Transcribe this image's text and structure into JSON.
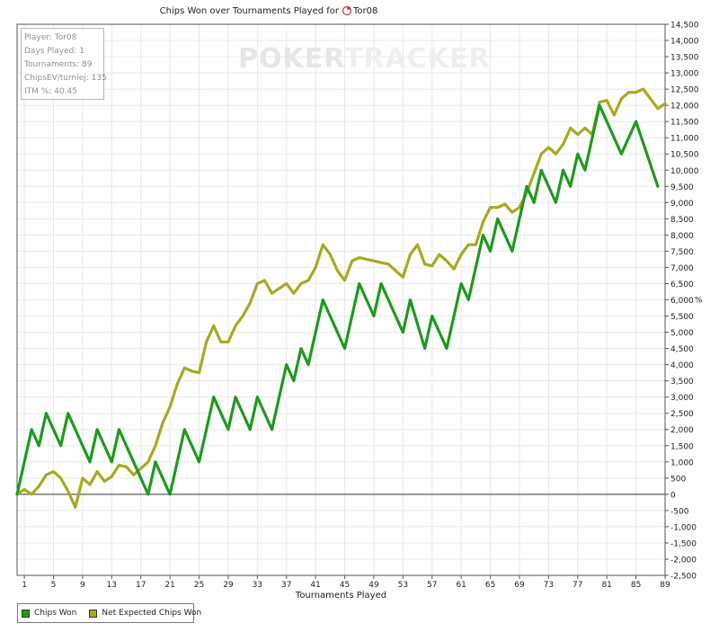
{
  "watermark": {
    "poker": "POKER",
    "tracker": "TRACKER"
  },
  "stats": {
    "player": "Player: Tor08",
    "days_played": "Days Played: 1",
    "tournaments": "Tournaments: 89",
    "chipsev": "ChipsEV/turniej: 135",
    "itm": "ITM %: 40.45"
  },
  "chart_data": {
    "type": "line",
    "title": "Chips Won over Tournaments Played for",
    "title_player": "Tor08",
    "xlabel": "Tournaments Played",
    "ylabel": "%",
    "xlim": [
      0,
      89
    ],
    "ylim": [
      -2500,
      14500
    ],
    "y_ticks": [
      14500,
      14000,
      13500,
      13000,
      12500,
      12000,
      11500,
      11000,
      10500,
      10000,
      9500,
      9000,
      8500,
      8000,
      7500,
      7000,
      6500,
      6000,
      5500,
      5000,
      4500,
      4000,
      3500,
      3000,
      2500,
      2000,
      1500,
      1000,
      500,
      0,
      -500,
      -1000,
      -1500,
      -2000,
      -2500
    ],
    "y_tick_labels": [
      "14,500",
      "14,000",
      "13,500",
      "13,000",
      "12,500",
      "12,000",
      "11,500",
      "11,000",
      "10,500",
      "10,000",
      "9,500",
      "9,000",
      "8,500",
      "8,000",
      "7,500",
      "7,000",
      "6,500",
      "6,000",
      "5,500",
      "5,000",
      "4,500",
      "4,000",
      "3,500",
      "3,000",
      "2,500",
      "2,000",
      "1,500",
      "1,000",
      "500",
      "0",
      "-500",
      "-1,000",
      "-1,500",
      "-2,000",
      "-2,500"
    ],
    "x_ticks": [
      1,
      5,
      9,
      13,
      17,
      21,
      25,
      29,
      33,
      37,
      41,
      45,
      49,
      53,
      57,
      61,
      65,
      69,
      73,
      77,
      81,
      85,
      89
    ],
    "x_tick_labels": [
      "1",
      "5",
      "9",
      "13",
      "17",
      "21",
      "25",
      "29",
      "33",
      "37",
      "41",
      "45",
      "49",
      "53",
      "57",
      "61",
      "65",
      "69",
      "73",
      "77",
      "81",
      "85",
      "89"
    ],
    "grid": true,
    "legend_position": "bottom-left",
    "series": [
      {
        "name": "Chips Won",
        "color": "#1e9a1e",
        "points": [
          [
            0,
            0
          ],
          [
            2,
            2000
          ],
          [
            3,
            1500
          ],
          [
            4,
            2500
          ],
          [
            6,
            1500
          ],
          [
            7,
            2500
          ],
          [
            10,
            1000
          ],
          [
            11,
            2000
          ],
          [
            13,
            1000
          ],
          [
            14,
            2000
          ],
          [
            17,
            500
          ],
          [
            18,
            0
          ],
          [
            19,
            1000
          ],
          [
            21,
            0
          ],
          [
            23,
            2000
          ],
          [
            25,
            1000
          ],
          [
            27,
            3000
          ],
          [
            29,
            2000
          ],
          [
            30,
            3000
          ],
          [
            32,
            2000
          ],
          [
            33,
            3000
          ],
          [
            35,
            2000
          ],
          [
            37,
            4000
          ],
          [
            38,
            3500
          ],
          [
            39,
            4500
          ],
          [
            40,
            4000
          ],
          [
            42,
            6000
          ],
          [
            45,
            4500
          ],
          [
            47,
            6500
          ],
          [
            49,
            5500
          ],
          [
            50,
            6500
          ],
          [
            53,
            5000
          ],
          [
            54,
            6000
          ],
          [
            56,
            4500
          ],
          [
            57,
            5500
          ],
          [
            59,
            4500
          ],
          [
            61,
            6500
          ],
          [
            62,
            6000
          ],
          [
            64,
            8000
          ],
          [
            65,
            7500
          ],
          [
            66,
            8500
          ],
          [
            68,
            7500
          ],
          [
            70,
            9500
          ],
          [
            71,
            9000
          ],
          [
            72,
            10000
          ],
          [
            74,
            9000
          ],
          [
            75,
            10000
          ],
          [
            76,
            9500
          ],
          [
            77,
            10500
          ],
          [
            78,
            10000
          ],
          [
            80,
            12000
          ],
          [
            83,
            10500
          ],
          [
            85,
            11500
          ],
          [
            88,
            9500
          ]
        ]
      },
      {
        "name": "Net Expected Chips Won",
        "color": "#a9a922",
        "points": [
          [
            0,
            0
          ],
          [
            1,
            150
          ],
          [
            2,
            0
          ],
          [
            3,
            250
          ],
          [
            4,
            600
          ],
          [
            5,
            700
          ],
          [
            6,
            500
          ],
          [
            7,
            100
          ],
          [
            8,
            -400
          ],
          [
            9,
            500
          ],
          [
            10,
            300
          ],
          [
            11,
            700
          ],
          [
            12,
            400
          ],
          [
            13,
            550
          ],
          [
            14,
            900
          ],
          [
            15,
            850
          ],
          [
            16,
            600
          ],
          [
            17,
            800
          ],
          [
            18,
            1000
          ],
          [
            19,
            1500
          ],
          [
            20,
            2200
          ],
          [
            21,
            2700
          ],
          [
            22,
            3400
          ],
          [
            23,
            3900
          ],
          [
            24,
            3800
          ],
          [
            25,
            3750
          ],
          [
            26,
            4700
          ],
          [
            27,
            5200
          ],
          [
            28,
            4700
          ],
          [
            29,
            4700
          ],
          [
            30,
            5200
          ],
          [
            31,
            5500
          ],
          [
            32,
            5900
          ],
          [
            33,
            6500
          ],
          [
            34,
            6600
          ],
          [
            35,
            6200
          ],
          [
            36,
            6350
          ],
          [
            37,
            6500
          ],
          [
            38,
            6200
          ],
          [
            39,
            6500
          ],
          [
            40,
            6600
          ],
          [
            41,
            7000
          ],
          [
            42,
            7700
          ],
          [
            43,
            7400
          ],
          [
            44,
            6900
          ],
          [
            45,
            6600
          ],
          [
            46,
            7200
          ],
          [
            47,
            7300
          ],
          [
            48,
            7250
          ],
          [
            49,
            7200
          ],
          [
            50,
            7150
          ],
          [
            51,
            7100
          ],
          [
            52,
            6900
          ],
          [
            53,
            6700
          ],
          [
            54,
            7400
          ],
          [
            55,
            7700
          ],
          [
            56,
            7100
          ],
          [
            57,
            7050
          ],
          [
            58,
            7400
          ],
          [
            59,
            7200
          ],
          [
            60,
            6950
          ],
          [
            61,
            7400
          ],
          [
            62,
            7700
          ],
          [
            63,
            7700
          ],
          [
            64,
            8400
          ],
          [
            65,
            8850
          ],
          [
            66,
            8850
          ],
          [
            67,
            8950
          ],
          [
            68,
            8700
          ],
          [
            69,
            8850
          ],
          [
            70,
            9300
          ],
          [
            71,
            9900
          ],
          [
            72,
            10500
          ],
          [
            73,
            10700
          ],
          [
            74,
            10500
          ],
          [
            75,
            10800
          ],
          [
            76,
            11300
          ],
          [
            77,
            11100
          ],
          [
            78,
            11300
          ],
          [
            79,
            11100
          ],
          [
            80,
            12100
          ],
          [
            81,
            12150
          ],
          [
            82,
            11700
          ],
          [
            83,
            12200
          ],
          [
            84,
            12400
          ],
          [
            85,
            12400
          ],
          [
            86,
            12500
          ],
          [
            87,
            12200
          ],
          [
            88,
            11900
          ],
          [
            89,
            12050
          ]
        ]
      }
    ]
  }
}
